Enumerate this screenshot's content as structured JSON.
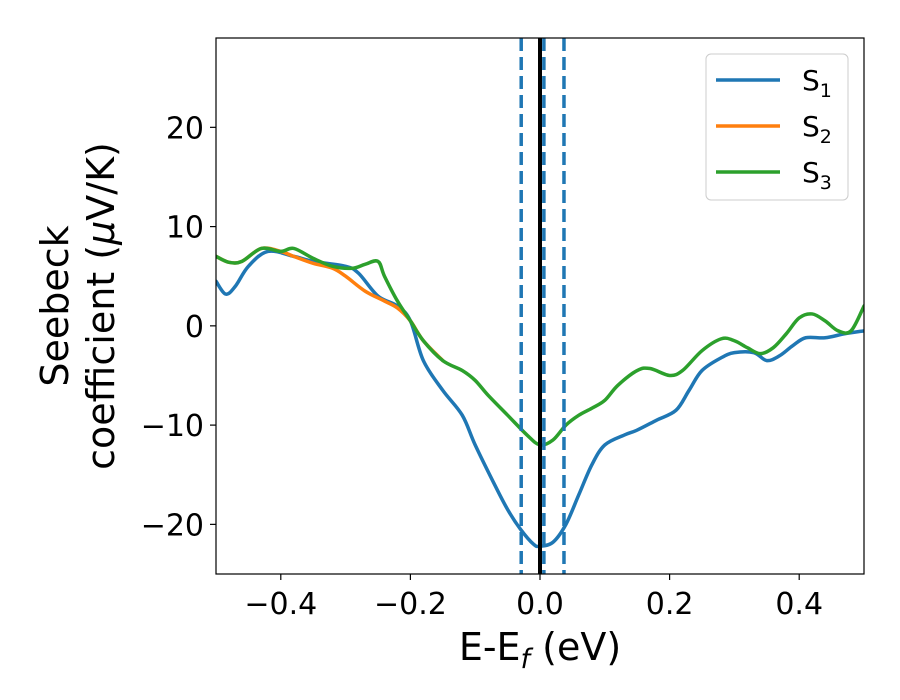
{
  "chart_data": {
    "type": "line",
    "xlabel": {
      "main": "E-E",
      "sub": "f",
      "suffix": " (eV)"
    },
    "ylabel": {
      "line1": "Seebeck",
      "line2_pre": "coefficient  (",
      "line2_mu": "μ",
      "line2_post": "V/K)"
    },
    "xlim": [
      -0.5,
      0.5
    ],
    "ylim": [
      -25,
      29
    ],
    "xticks": [
      -0.4,
      -0.2,
      0.0,
      0.2,
      0.4
    ],
    "xtick_labels": [
      "−0.4",
      "−0.2",
      "0.0",
      "0.2",
      "0.4"
    ],
    "yticks": [
      -20,
      -10,
      0,
      10,
      20
    ],
    "ytick_labels": [
      "−20",
      "−10",
      "0",
      "10",
      "20"
    ],
    "grid": false,
    "legend_position": "top-right",
    "vertical_lines": [
      {
        "x": 0.0,
        "style": "solid",
        "color": "#000000"
      },
      {
        "x": -0.029,
        "style": "dashed",
        "color": "#1f77b4"
      },
      {
        "x": 0.006,
        "style": "dashed",
        "color": "#1f77b4"
      },
      {
        "x": 0.037,
        "style": "dashed",
        "color": "#1f77b4"
      }
    ],
    "series": [
      {
        "name": "S",
        "sub": "1",
        "color": "#1f77b4",
        "points": [
          [
            -0.5,
            4.5
          ],
          [
            -0.485,
            3.2
          ],
          [
            -0.47,
            4.0
          ],
          [
            -0.45,
            6.0
          ],
          [
            -0.42,
            7.5
          ],
          [
            -0.38,
            7.0
          ],
          [
            -0.35,
            6.5
          ],
          [
            -0.3,
            6.0
          ],
          [
            -0.28,
            5.3
          ],
          [
            -0.25,
            3.0
          ],
          [
            -0.22,
            2.0
          ],
          [
            -0.2,
            0.5
          ],
          [
            -0.18,
            -3.5
          ],
          [
            -0.15,
            -6.5
          ],
          [
            -0.12,
            -9.0
          ],
          [
            -0.1,
            -12.0
          ],
          [
            -0.07,
            -16.0
          ],
          [
            -0.05,
            -18.5
          ],
          [
            -0.03,
            -20.5
          ],
          [
            -0.01,
            -22.0
          ],
          [
            0.0,
            -22.2
          ],
          [
            0.02,
            -21.8
          ],
          [
            0.04,
            -20.0
          ],
          [
            0.06,
            -17.0
          ],
          [
            0.08,
            -14.0
          ],
          [
            0.1,
            -12.0
          ],
          [
            0.13,
            -11.0
          ],
          [
            0.15,
            -10.5
          ],
          [
            0.18,
            -9.5
          ],
          [
            0.21,
            -8.5
          ],
          [
            0.23,
            -6.5
          ],
          [
            0.25,
            -4.5
          ],
          [
            0.28,
            -3.2
          ],
          [
            0.3,
            -2.7
          ],
          [
            0.33,
            -2.7
          ],
          [
            0.35,
            -3.5
          ],
          [
            0.37,
            -3.0
          ],
          [
            0.39,
            -2.0
          ],
          [
            0.41,
            -1.2
          ],
          [
            0.44,
            -1.2
          ],
          [
            0.47,
            -0.8
          ],
          [
            0.5,
            -0.5
          ]
        ]
      },
      {
        "name": "S",
        "sub": "2",
        "color": "#ff7f0e",
        "points": [
          [
            -0.5,
            7.0
          ],
          [
            -0.48,
            6.4
          ],
          [
            -0.46,
            6.5
          ],
          [
            -0.43,
            7.8
          ],
          [
            -0.4,
            7.5
          ],
          [
            -0.38,
            7.0
          ],
          [
            -0.35,
            6.3
          ],
          [
            -0.32,
            5.8
          ],
          [
            -0.3,
            5.0
          ],
          [
            -0.27,
            3.5
          ],
          [
            -0.24,
            2.5
          ],
          [
            -0.22,
            1.8
          ],
          [
            -0.2,
            0.5
          ],
          [
            -0.18,
            -1.5
          ],
          [
            -0.15,
            -3.5
          ]
        ]
      },
      {
        "name": "S",
        "sub": "3",
        "color": "#2ca02c",
        "points": [
          [
            -0.5,
            7.0
          ],
          [
            -0.48,
            6.4
          ],
          [
            -0.46,
            6.5
          ],
          [
            -0.43,
            7.8
          ],
          [
            -0.4,
            7.5
          ],
          [
            -0.38,
            7.8
          ],
          [
            -0.35,
            6.8
          ],
          [
            -0.32,
            6.0
          ],
          [
            -0.29,
            5.8
          ],
          [
            -0.27,
            6.2
          ],
          [
            -0.25,
            6.5
          ],
          [
            -0.24,
            5.0
          ],
          [
            -0.22,
            2.5
          ],
          [
            -0.2,
            0.5
          ],
          [
            -0.18,
            -1.5
          ],
          [
            -0.15,
            -3.5
          ],
          [
            -0.12,
            -4.5
          ],
          [
            -0.1,
            -5.5
          ],
          [
            -0.08,
            -7.0
          ],
          [
            -0.05,
            -9.0
          ],
          [
            -0.02,
            -11.0
          ],
          [
            0.0,
            -12.0
          ],
          [
            0.02,
            -11.5
          ],
          [
            0.04,
            -10.0
          ],
          [
            0.06,
            -9.0
          ],
          [
            0.08,
            -8.3
          ],
          [
            0.1,
            -7.5
          ],
          [
            0.12,
            -6.0
          ],
          [
            0.15,
            -4.5
          ],
          [
            0.17,
            -4.3
          ],
          [
            0.2,
            -5.0
          ],
          [
            0.22,
            -4.5
          ],
          [
            0.25,
            -2.5
          ],
          [
            0.28,
            -1.3
          ],
          [
            0.3,
            -1.5
          ],
          [
            0.32,
            -2.2
          ],
          [
            0.34,
            -2.8
          ],
          [
            0.36,
            -2.2
          ],
          [
            0.38,
            -0.8
          ],
          [
            0.4,
            0.8
          ],
          [
            0.42,
            1.2
          ],
          [
            0.44,
            0.5
          ],
          [
            0.46,
            -0.5
          ],
          [
            0.48,
            -0.5
          ],
          [
            0.5,
            2.0
          ]
        ]
      }
    ]
  }
}
